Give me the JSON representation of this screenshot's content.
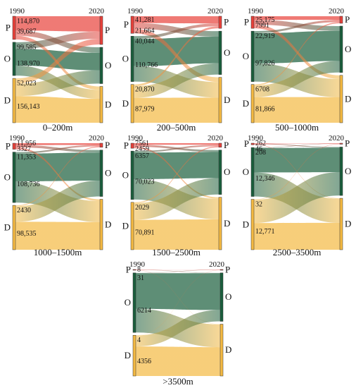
{
  "years": [
    "1990",
    "2020"
  ],
  "categories": [
    "P",
    "O",
    "D"
  ],
  "colors": {
    "P": "#e8413a",
    "O": "#1a5e3c",
    "D": "#f4b942"
  },
  "panels": [
    {
      "title": "0–200m",
      "labels": {
        "P": [
          "114,870",
          "39,687"
        ],
        "O": [
          "99,585",
          "138,970"
        ],
        "D": [
          "52,023",
          "156,143"
        ]
      },
      "left": {
        "P": 0.23,
        "O": 0.33,
        "D": 0.44
      },
      "right": {
        "P": 0.28,
        "O": 0.36,
        "D": 0.36
      },
      "flows": [
        {
          "from": "P",
          "to": "P",
          "share": 0.62
        },
        {
          "from": "P",
          "to": "O",
          "share": 0.22
        },
        {
          "from": "P",
          "to": "D",
          "share": 0.16
        },
        {
          "from": "O",
          "to": "P",
          "share": 0.2
        },
        {
          "from": "O",
          "to": "O",
          "share": 0.5
        },
        {
          "from": "O",
          "to": "D",
          "share": 0.3
        },
        {
          "from": "D",
          "to": "P",
          "share": 0.12
        },
        {
          "from": "D",
          "to": "O",
          "share": 0.28
        },
        {
          "from": "D",
          "to": "D",
          "share": 0.6
        }
      ]
    },
    {
      "title": "200–500m",
      "labels": {
        "P": [
          "41,281",
          "21,664"
        ],
        "O": [
          "40,044",
          "110,766"
        ],
        "D": [
          "20,870",
          "87,979"
        ]
      },
      "left": {
        "P": 0.17,
        "O": 0.45,
        "D": 0.38
      },
      "right": {
        "P": 0.12,
        "O": 0.43,
        "D": 0.45
      },
      "flows": [
        {
          "from": "P",
          "to": "P",
          "share": 0.4
        },
        {
          "from": "P",
          "to": "O",
          "share": 0.33
        },
        {
          "from": "P",
          "to": "D",
          "share": 0.27
        },
        {
          "from": "O",
          "to": "P",
          "share": 0.06
        },
        {
          "from": "O",
          "to": "O",
          "share": 0.6
        },
        {
          "from": "O",
          "to": "D",
          "share": 0.34
        },
        {
          "from": "D",
          "to": "P",
          "share": 0.05
        },
        {
          "from": "D",
          "to": "O",
          "share": 0.3
        },
        {
          "from": "D",
          "to": "D",
          "share": 0.65
        }
      ]
    },
    {
      "title": "500–1000m",
      "labels": {
        "P": [
          "25,175",
          "7991"
        ],
        "O": [
          "22,919",
          "97,826"
        ],
        "D": [
          "6708",
          "81,866"
        ]
      },
      "left": {
        "P": 0.12,
        "O": 0.5,
        "D": 0.38
      },
      "right": {
        "P": 0.07,
        "O": 0.46,
        "D": 0.47
      },
      "flows": [
        {
          "from": "P",
          "to": "P",
          "share": 0.3
        },
        {
          "from": "P",
          "to": "O",
          "share": 0.4
        },
        {
          "from": "P",
          "to": "D",
          "share": 0.3
        },
        {
          "from": "O",
          "to": "P",
          "share": 0.04
        },
        {
          "from": "O",
          "to": "O",
          "share": 0.6
        },
        {
          "from": "O",
          "to": "D",
          "share": 0.36
        },
        {
          "from": "D",
          "to": "P",
          "share": 0.03
        },
        {
          "from": "D",
          "to": "O",
          "share": 0.3
        },
        {
          "from": "D",
          "to": "D",
          "share": 0.67
        }
      ]
    },
    {
      "title": "1000–1500m",
      "labels": {
        "P": [
          "11,956",
          "3327"
        ],
        "O": [
          "11,353",
          "108,736"
        ],
        "D": [
          "2430",
          "98,535"
        ]
      },
      "left": {
        "P": 0.06,
        "O": 0.5,
        "D": 0.44
      },
      "right": {
        "P": 0.04,
        "O": 0.46,
        "D": 0.5
      },
      "flows": [
        {
          "from": "P",
          "to": "P",
          "share": 0.3
        },
        {
          "from": "P",
          "to": "O",
          "share": 0.4
        },
        {
          "from": "P",
          "to": "D",
          "share": 0.3
        },
        {
          "from": "O",
          "to": "P",
          "share": 0.03
        },
        {
          "from": "O",
          "to": "O",
          "share": 0.55
        },
        {
          "from": "O",
          "to": "D",
          "share": 0.42
        },
        {
          "from": "D",
          "to": "P",
          "share": 0.02
        },
        {
          "from": "D",
          "to": "O",
          "share": 0.35
        },
        {
          "from": "D",
          "to": "D",
          "share": 0.63
        }
      ]
    },
    {
      "title": "1500–2500m",
      "labels": {
        "P": [
          "7561",
          "2459"
        ],
        "O": [
          "6357",
          "70,023"
        ],
        "D": [
          "2029",
          "70,891"
        ]
      },
      "left": {
        "P": 0.05,
        "O": 0.48,
        "D": 0.47
      },
      "right": {
        "P": 0.04,
        "O": 0.44,
        "D": 0.52
      },
      "flows": [
        {
          "from": "P",
          "to": "P",
          "share": 0.3
        },
        {
          "from": "P",
          "to": "O",
          "share": 0.4
        },
        {
          "from": "P",
          "to": "D",
          "share": 0.3
        },
        {
          "from": "O",
          "to": "P",
          "share": 0.03
        },
        {
          "from": "O",
          "to": "O",
          "share": 0.55
        },
        {
          "from": "O",
          "to": "D",
          "share": 0.42
        },
        {
          "from": "D",
          "to": "P",
          "share": 0.02
        },
        {
          "from": "D",
          "to": "O",
          "share": 0.35
        },
        {
          "from": "D",
          "to": "D",
          "share": 0.63
        }
      ]
    },
    {
      "title": "2500–3500m",
      "labels": {
        "P": [
          "262",
          "46"
        ],
        "O": [
          "208",
          "12,346"
        ],
        "D": [
          "32",
          "12,771"
        ]
      },
      "left": {
        "P": 0.015,
        "O": 0.485,
        "D": 0.5
      },
      "right": {
        "P": 0.01,
        "O": 0.48,
        "D": 0.51
      },
      "flows": [
        {
          "from": "P",
          "to": "P",
          "share": 0.2
        },
        {
          "from": "P",
          "to": "O",
          "share": 0.5
        },
        {
          "from": "P",
          "to": "D",
          "share": 0.3
        },
        {
          "from": "O",
          "to": "P",
          "share": 0.01
        },
        {
          "from": "O",
          "to": "O",
          "share": 0.5
        },
        {
          "from": "O",
          "to": "D",
          "share": 0.49
        },
        {
          "from": "D",
          "to": "P",
          "share": 0.01
        },
        {
          "from": "D",
          "to": "O",
          "share": 0.46
        },
        {
          "from": "D",
          "to": "D",
          "share": 0.53
        }
      ]
    },
    {
      "title": ">3500m",
      "labels": {
        "P": [
          "8",
          ""
        ],
        "O": [
          "31",
          "6214"
        ],
        "D": [
          "4",
          "4356"
        ]
      },
      "left": {
        "P": 0.006,
        "O": 0.59,
        "D": 0.404
      },
      "right": {
        "P": 0.006,
        "O": 0.48,
        "D": 0.514
      },
      "flows": [
        {
          "from": "P",
          "to": "P",
          "share": 0.2
        },
        {
          "from": "P",
          "to": "O",
          "share": 0.5
        },
        {
          "from": "P",
          "to": "D",
          "share": 0.3
        },
        {
          "from": "O",
          "to": "P",
          "share": 0.005
        },
        {
          "from": "O",
          "to": "O",
          "share": 0.6
        },
        {
          "from": "O",
          "to": "D",
          "share": 0.395
        },
        {
          "from": "D",
          "to": "P",
          "share": 0.005
        },
        {
          "from": "D",
          "to": "O",
          "share": 0.27
        },
        {
          "from": "D",
          "to": "D",
          "share": 0.725
        }
      ]
    }
  ]
}
